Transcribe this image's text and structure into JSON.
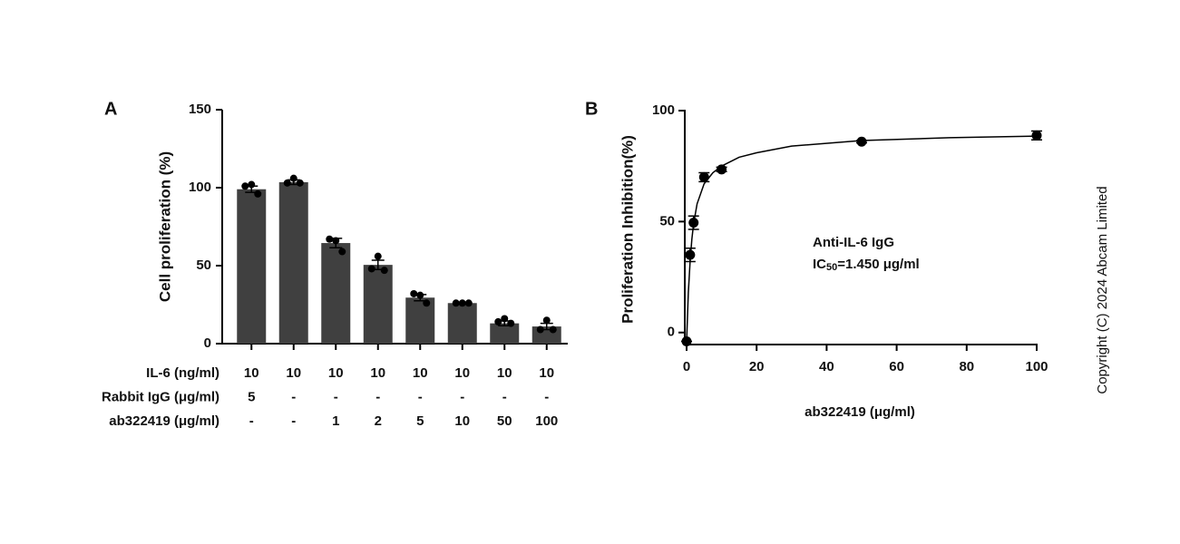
{
  "chart_data": [
    {
      "type": "bar",
      "panel_label": "A",
      "categories": [
        null,
        null,
        null,
        null,
        null,
        null,
        null,
        null
      ],
      "values": [
        99,
        103.5,
        64.5,
        50.5,
        29.5,
        26,
        13,
        11
      ],
      "errors": [
        2,
        1.5,
        3,
        3,
        2,
        0.5,
        1.5,
        2
      ],
      "points": [
        [
          101,
          102,
          96
        ],
        [
          103,
          106,
          103
        ],
        [
          67,
          66,
          59
        ],
        [
          48,
          56,
          47
        ],
        [
          32,
          31,
          26
        ],
        [
          26,
          26,
          26
        ],
        [
          14,
          16,
          13
        ],
        [
          9,
          15,
          9
        ]
      ],
      "conditions": [
        {
          "label": "IL-6 (ng/ml)",
          "values": [
            "10",
            "10",
            "10",
            "10",
            "10",
            "10",
            "10",
            "10"
          ]
        },
        {
          "label": "Rabbit IgG (μg/ml)",
          "values": [
            "5",
            "-",
            "-",
            "-",
            "-",
            "-",
            "-",
            "-"
          ]
        },
        {
          "label": "ab322419 (μg/ml)",
          "values": [
            "-",
            "-",
            "1",
            "2",
            "5",
            "10",
            "50",
            "100"
          ]
        }
      ],
      "ylabel": "Cell proliferation (%)",
      "ylim": [
        0,
        150
      ],
      "yticks": [
        0,
        50,
        100,
        150
      ],
      "color": "#404040",
      "point_color": "#000000"
    },
    {
      "type": "scatter",
      "panel_label": "B",
      "x": [
        0,
        1,
        2,
        5,
        10,
        50,
        100
      ],
      "values": [
        -4,
        35,
        49.5,
        70,
        73.5,
        86,
        88.8
      ],
      "errors": [
        0,
        3,
        3,
        2,
        1,
        0.5,
        2
      ],
      "curve": {
        "x": [
          0,
          0.5,
          1,
          1.5,
          2,
          3,
          5,
          7.5,
          10,
          15,
          20,
          30,
          50,
          75,
          100
        ],
        "y": [
          -4,
          18,
          32,
          42,
          49,
          58,
          67,
          72,
          75,
          79,
          81,
          84,
          86.5,
          87.8,
          88.5
        ]
      },
      "xlabel": "ab322419 (μg/ml)",
      "ylabel": "Proliferation Inhibition(%)",
      "xlim": [
        0,
        100
      ],
      "xticks": [
        0,
        20,
        40,
        60,
        80,
        100
      ],
      "ylim": [
        -5,
        100
      ],
      "yticks": [
        0,
        50,
        100
      ],
      "annotation": "Anti-IL-6 IgG",
      "ic50": {
        "prefix": "IC",
        "subscript": "50",
        "text": "=1.450 μg/ml"
      },
      "color": "#000000"
    }
  ],
  "copyright": "Copyright (C) 2024 Abcam Limited"
}
